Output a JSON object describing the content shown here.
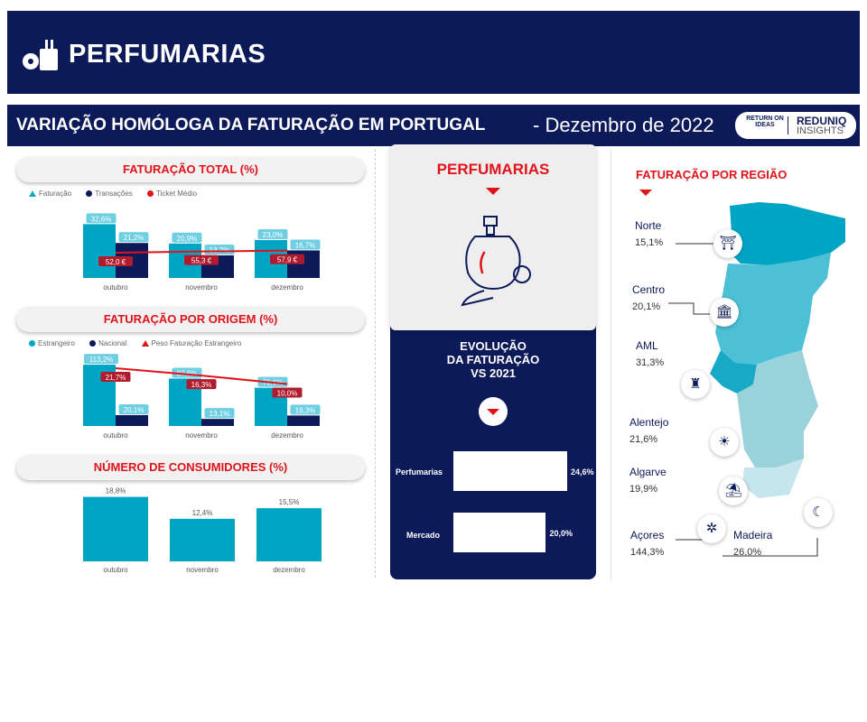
{
  "header": {
    "title": "PERFUMARIAS",
    "subtitle": "VARIAÇÃO HOMÓLOGA DA FATURAÇÃO EM PORTUGAL",
    "period": "- Dezembro de 2022",
    "brand_left": "RETURN ON IDEAS",
    "brand_right_1": "REDUNIQ",
    "brand_right_2": "INSIGHTS"
  },
  "colors": {
    "navy": "#0c1a5a",
    "teal": "#00a5c4",
    "red": "#e0131b",
    "label_bg": "#6ecfe3",
    "ticket_bg": "#b01c2e"
  },
  "chart_data": [
    {
      "type": "bar",
      "title": "FATURAÇÃO TOTAL (%)",
      "categories": [
        "outubro",
        "novembro",
        "dezembro"
      ],
      "series": [
        {
          "name": "Faturação",
          "values": [
            32.6,
            20.9,
            23.0
          ],
          "labels": [
            "32,6%",
            "20,9%",
            "23,0%"
          ]
        },
        {
          "name": "Transações",
          "values": [
            21.2,
            13.7,
            16.7
          ],
          "labels": [
            "21,2%",
            "13,7%",
            "16,7%"
          ]
        },
        {
          "name": "Ticket Médio",
          "type": "line",
          "values": [
            52.0,
            55.3,
            57.9
          ],
          "labels": [
            "52,0 €",
            "55,3 €",
            "57,9 €"
          ]
        }
      ]
    },
    {
      "type": "bar",
      "title": "FATURAÇÃO POR ORIGEM (%)",
      "categories": [
        "outubro",
        "novembro",
        "dezembro"
      ],
      "series": [
        {
          "name": "Estrangeiro",
          "values": [
            113.2,
            87.6,
            70.6
          ],
          "labels": [
            "113,2%",
            "87,6%",
            "70,6%"
          ]
        },
        {
          "name": "Nacional",
          "values": [
            20.1,
            13.1,
            19.3
          ],
          "labels": [
            "20,1%",
            "13,1%",
            "19,3%"
          ]
        },
        {
          "name": "Peso Faturação Estrangeiro",
          "type": "line",
          "values": [
            21.7,
            16.3,
            10.0
          ],
          "labels": [
            "21,7%",
            "16,3%",
            "10,0%"
          ]
        }
      ]
    },
    {
      "type": "bar",
      "title": "NÚMERO DE CONSUMIDORES (%)",
      "categories": [
        "outubro",
        "novembro",
        "dezembro"
      ],
      "values": [
        18.8,
        12.4,
        15.5
      ],
      "labels": [
        "18,8%",
        "12,4%",
        "15,5%"
      ]
    },
    {
      "type": "bar",
      "title": "EVOLUÇÃO DA FATURAÇÃO VS 2021",
      "categories": [
        "Perfumarias",
        "Mercado"
      ],
      "values": [
        24.6,
        20.0
      ],
      "labels": [
        "24,6%",
        "20,0%"
      ]
    }
  ],
  "product": {
    "name": "PERFUMARIAS",
    "evolution_title_1": "EVOLUÇÃO",
    "evolution_title_2": "DA FATURAÇÃO",
    "evolution_title_3": "VS 2021"
  },
  "map": {
    "title": "FATURAÇÃO POR REGIÃO",
    "regions": [
      {
        "name": "Norte",
        "value": "15,1%"
      },
      {
        "name": "Centro",
        "value": "20,1%"
      },
      {
        "name": "AML",
        "value": "31,3%"
      },
      {
        "name": "Alentejo",
        "value": "21,6%"
      },
      {
        "name": "Algarve",
        "value": "19,9%"
      },
      {
        "name": "Açores",
        "value": "144,3%"
      },
      {
        "name": "Madeira",
        "value": "26,0%"
      }
    ]
  }
}
